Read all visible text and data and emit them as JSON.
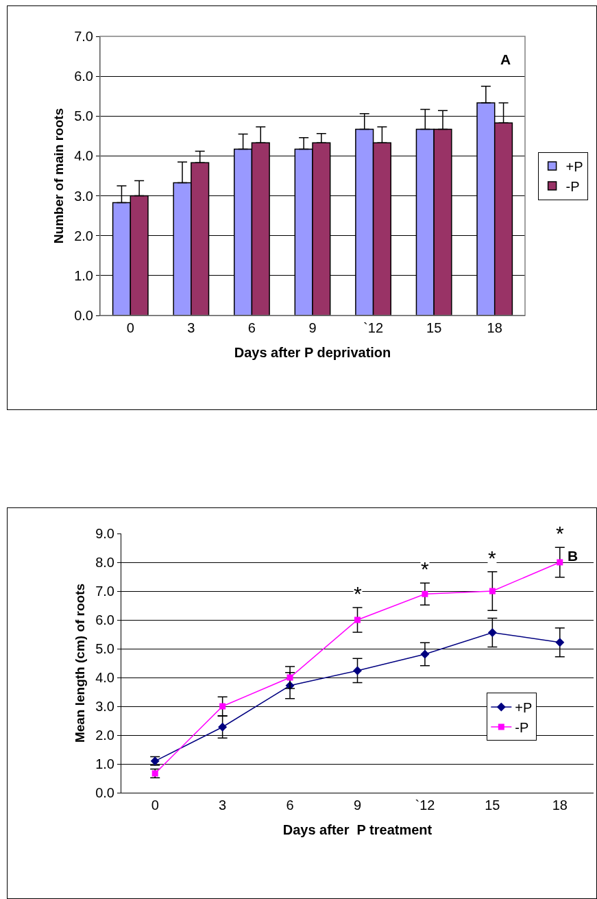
{
  "chart_data": [
    {
      "type": "bar",
      "title": "A",
      "xlabel": "Days after P deprivation",
      "ylabel": "Number of main roots",
      "categories": [
        "0",
        "3",
        "6",
        "9",
        "`12",
        "15",
        "18"
      ],
      "series": [
        {
          "name": "+P",
          "color": "#9999ff",
          "values": [
            2.83,
            3.33,
            4.17,
            4.17,
            4.67,
            4.67,
            5.33
          ],
          "errors": [
            [
              2.83,
              3.25
            ],
            [
              3.33,
              3.85
            ],
            [
              4.17,
              4.55
            ],
            [
              4.17,
              4.46
            ],
            [
              4.67,
              5.06
            ],
            [
              4.67,
              5.17
            ],
            [
              5.33,
              5.75
            ]
          ]
        },
        {
          "name": "-P",
          "color": "#993366",
          "values": [
            3.0,
            3.83,
            4.33,
            4.33,
            4.33,
            4.67,
            4.83
          ],
          "errors": [
            [
              3.0,
              3.38
            ],
            [
              3.83,
              4.12
            ],
            [
              4.33,
              4.73
            ],
            [
              4.33,
              4.56
            ],
            [
              4.33,
              4.73
            ],
            [
              4.67,
              5.14
            ],
            [
              4.83,
              5.33
            ]
          ]
        }
      ],
      "ylim": [
        0,
        7
      ],
      "yticks": [
        {
          "value": 0,
          "label": "0.0"
        },
        {
          "value": 1,
          "label": "1.0"
        },
        {
          "value": 2,
          "label": "2.0"
        },
        {
          "value": 3,
          "label": "3.0"
        },
        {
          "value": 4,
          "label": "4.0"
        },
        {
          "value": 5,
          "label": "5.0"
        },
        {
          "value": 6,
          "label": "6.0"
        },
        {
          "value": 7,
          "label": "7.0"
        }
      ],
      "grid": "y",
      "legend": "right"
    },
    {
      "type": "line",
      "title": "B",
      "xlabel": "Days after  P treatment",
      "ylabel": "Mean length (cm) of roots",
      "categories": [
        "0",
        "3",
        "6",
        "9",
        "`12",
        "15",
        "18"
      ],
      "series": [
        {
          "name": "+P",
          "color": "#000080",
          "marker": "diamond",
          "values": [
            1.1,
            2.28,
            3.72,
            4.24,
            4.81,
            5.56,
            5.22
          ],
          "errors": [
            0.15,
            0.38,
            0.45,
            0.42,
            0.4,
            0.5,
            0.5
          ]
        },
        {
          "name": "-P",
          "color": "#ff00ff",
          "marker": "square",
          "values": [
            0.67,
            3.0,
            4.0,
            6.0,
            6.9,
            7.0,
            8.0
          ],
          "errors": [
            0.15,
            0.33,
            0.38,
            0.43,
            0.38,
            0.67,
            0.52
          ]
        }
      ],
      "annotations": [
        "*",
        "*",
        "*",
        "*"
      ],
      "ylim": [
        0,
        9
      ],
      "yticks": [
        {
          "value": 0,
          "label": "0.0"
        },
        {
          "value": 1,
          "label": "1.0"
        },
        {
          "value": 2,
          "label": "2.0"
        },
        {
          "value": 3,
          "label": "3.0"
        },
        {
          "value": 4,
          "label": "4.0"
        },
        {
          "value": 5,
          "label": "5.0"
        },
        {
          "value": 6,
          "label": "6.0"
        },
        {
          "value": 7,
          "label": "7.0"
        },
        {
          "value": 8,
          "label": "8.0"
        },
        {
          "value": 9,
          "label": "9.0"
        }
      ],
      "grid": "y",
      "legend": "bottom right"
    }
  ]
}
